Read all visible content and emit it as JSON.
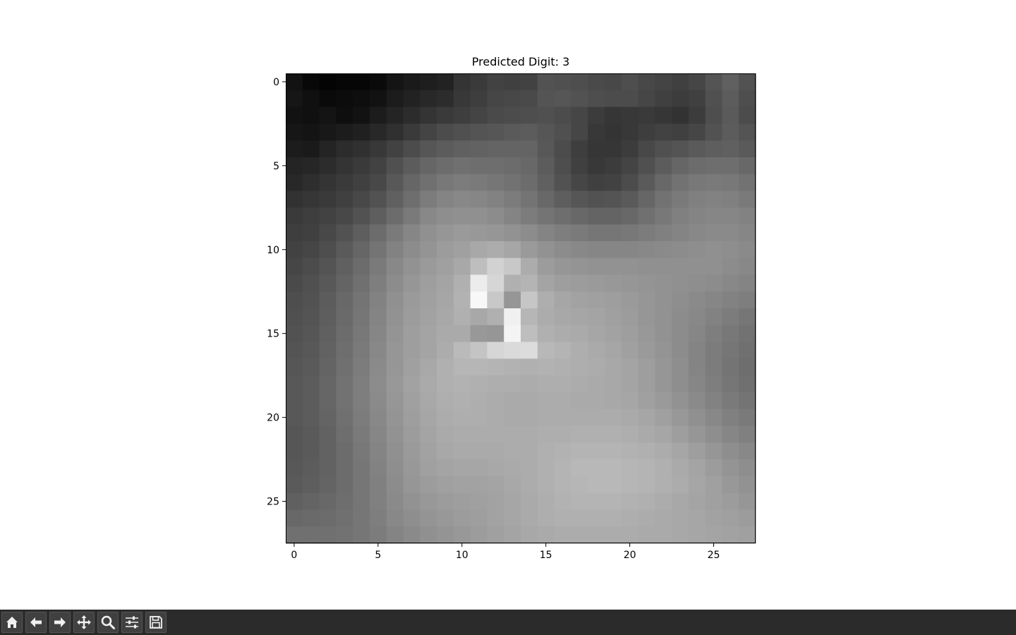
{
  "chart_data": {
    "type": "heatmap",
    "title": "Predicted Digit: 3",
    "colormap": "gray",
    "xlim": [
      -0.5,
      27.5
    ],
    "ylim": [
      27.5,
      -0.5
    ],
    "xticks": [
      0,
      5,
      10,
      15,
      20,
      25
    ],
    "yticks": [
      0,
      5,
      10,
      15,
      20,
      25
    ],
    "grid": false,
    "pixels": [
      [
        18,
        8,
        4,
        6,
        6,
        10,
        20,
        26,
        30,
        34,
        52,
        58,
        66,
        64,
        66,
        82,
        80,
        78,
        74,
        72,
        78,
        72,
        68,
        64,
        70,
        84,
        96,
        82
      ],
      [
        22,
        16,
        10,
        12,
        14,
        18,
        28,
        34,
        40,
        44,
        56,
        62,
        70,
        72,
        74,
        84,
        86,
        82,
        78,
        76,
        76,
        70,
        64,
        60,
        64,
        80,
        92,
        78
      ],
      [
        18,
        16,
        20,
        14,
        18,
        28,
        36,
        44,
        52,
        58,
        62,
        68,
        74,
        76,
        78,
        80,
        76,
        70,
        60,
        54,
        56,
        58,
        54,
        50,
        60,
        78,
        90,
        76
      ],
      [
        22,
        20,
        24,
        28,
        32,
        40,
        48,
        58,
        68,
        76,
        80,
        84,
        86,
        90,
        92,
        86,
        80,
        70,
        56,
        52,
        56,
        62,
        66,
        64,
        70,
        82,
        92,
        84
      ],
      [
        28,
        26,
        36,
        44,
        48,
        56,
        66,
        76,
        86,
        92,
        96,
        98,
        100,
        100,
        100,
        88,
        76,
        62,
        54,
        54,
        60,
        72,
        80,
        84,
        90,
        94,
        96,
        90
      ],
      [
        36,
        38,
        44,
        52,
        58,
        66,
        80,
        92,
        102,
        108,
        112,
        110,
        110,
        108,
        104,
        92,
        78,
        64,
        56,
        60,
        68,
        80,
        92,
        102,
        108,
        110,
        110,
        104
      ],
      [
        40,
        46,
        52,
        58,
        64,
        72,
        88,
        102,
        112,
        120,
        124,
        122,
        118,
        114,
        108,
        96,
        82,
        70,
        64,
        66,
        76,
        90,
        104,
        114,
        120,
        122,
        120,
        114
      ],
      [
        50,
        54,
        58,
        64,
        72,
        82,
        96,
        110,
        124,
        132,
        136,
        134,
        130,
        124,
        116,
        104,
        94,
        86,
        82,
        84,
        90,
        102,
        114,
        122,
        128,
        130,
        128,
        122
      ],
      [
        58,
        62,
        66,
        72,
        82,
        94,
        108,
        122,
        136,
        142,
        144,
        144,
        140,
        132,
        124,
        116,
        110,
        104,
        100,
        100,
        104,
        112,
        120,
        128,
        132,
        134,
        134,
        130
      ],
      [
        62,
        64,
        72,
        82,
        94,
        108,
        122,
        134,
        144,
        150,
        154,
        152,
        150,
        146,
        140,
        132,
        126,
        122,
        118,
        118,
        120,
        124,
        128,
        132,
        136,
        138,
        138,
        134
      ],
      [
        66,
        70,
        78,
        90,
        102,
        116,
        130,
        140,
        148,
        156,
        160,
        168,
        172,
        166,
        154,
        146,
        140,
        136,
        134,
        134,
        134,
        136,
        138,
        140,
        142,
        144,
        142,
        138
      ],
      [
        70,
        76,
        84,
        96,
        108,
        122,
        136,
        146,
        154,
        160,
        168,
        190,
        210,
        200,
        172,
        156,
        150,
        148,
        146,
        146,
        146,
        144,
        144,
        144,
        144,
        144,
        140,
        136
      ],
      [
        74,
        80,
        88,
        100,
        112,
        126,
        140,
        150,
        158,
        164,
        176,
        236,
        214,
        176,
        180,
        164,
        158,
        156,
        154,
        152,
        150,
        148,
        146,
        144,
        142,
        140,
        136,
        132
      ],
      [
        78,
        82,
        92,
        104,
        116,
        130,
        144,
        154,
        160,
        166,
        178,
        248,
        200,
        150,
        198,
        174,
        166,
        162,
        160,
        158,
        154,
        150,
        146,
        142,
        138,
        134,
        130,
        126
      ],
      [
        80,
        84,
        94,
        106,
        118,
        132,
        146,
        156,
        162,
        168,
        176,
        168,
        176,
        240,
        182,
        172,
        168,
        166,
        164,
        160,
        156,
        150,
        146,
        140,
        136,
        130,
        124,
        118
      ],
      [
        82,
        86,
        96,
        108,
        120,
        134,
        148,
        158,
        164,
        170,
        170,
        152,
        150,
        244,
        190,
        176,
        172,
        170,
        166,
        162,
        158,
        152,
        146,
        140,
        134,
        126,
        120,
        114
      ],
      [
        84,
        88,
        98,
        110,
        122,
        136,
        150,
        158,
        164,
        172,
        186,
        196,
        214,
        218,
        220,
        184,
        180,
        174,
        170,
        166,
        160,
        154,
        148,
        140,
        132,
        124,
        118,
        112
      ],
      [
        86,
        90,
        100,
        112,
        124,
        138,
        150,
        160,
        168,
        176,
        182,
        182,
        180,
        178,
        176,
        178,
        176,
        174,
        172,
        168,
        164,
        158,
        150,
        142,
        132,
        124,
        116,
        110
      ],
      [
        88,
        92,
        102,
        114,
        126,
        140,
        152,
        162,
        170,
        176,
        178,
        176,
        174,
        174,
        172,
        174,
        174,
        172,
        170,
        168,
        164,
        158,
        150,
        142,
        134,
        126,
        118,
        112
      ],
      [
        88,
        92,
        102,
        114,
        126,
        138,
        150,
        160,
        168,
        174,
        176,
        174,
        172,
        170,
        170,
        172,
        172,
        170,
        170,
        168,
        166,
        160,
        154,
        146,
        138,
        130,
        122,
        116
      ],
      [
        88,
        92,
        100,
        112,
        124,
        136,
        148,
        158,
        166,
        172,
        174,
        174,
        172,
        170,
        170,
        172,
        172,
        172,
        172,
        172,
        170,
        166,
        160,
        152,
        144,
        136,
        128,
        122
      ],
      [
        86,
        90,
        98,
        110,
        122,
        134,
        146,
        156,
        164,
        170,
        172,
        172,
        172,
        172,
        172,
        174,
        174,
        176,
        176,
        176,
        174,
        170,
        166,
        158,
        150,
        142,
        134,
        128
      ],
      [
        86,
        90,
        98,
        108,
        120,
        132,
        144,
        154,
        162,
        168,
        170,
        170,
        170,
        172,
        172,
        176,
        178,
        180,
        180,
        180,
        178,
        176,
        172,
        166,
        158,
        150,
        142,
        136
      ],
      [
        88,
        92,
        98,
        108,
        118,
        130,
        142,
        152,
        160,
        164,
        166,
        166,
        168,
        170,
        172,
        176,
        180,
        184,
        184,
        184,
        182,
        180,
        176,
        170,
        164,
        156,
        148,
        142
      ],
      [
        90,
        94,
        100,
        108,
        118,
        128,
        140,
        150,
        156,
        160,
        162,
        162,
        164,
        168,
        172,
        176,
        180,
        182,
        184,
        184,
        182,
        180,
        176,
        172,
        166,
        160,
        152,
        146
      ],
      [
        96,
        100,
        104,
        110,
        118,
        128,
        138,
        146,
        152,
        156,
        158,
        160,
        162,
        166,
        170,
        174,
        178,
        180,
        180,
        180,
        178,
        176,
        172,
        168,
        164,
        160,
        156,
        150
      ],
      [
        104,
        106,
        108,
        112,
        118,
        126,
        136,
        142,
        148,
        152,
        156,
        158,
        162,
        166,
        170,
        174,
        176,
        176,
        176,
        176,
        174,
        172,
        170,
        168,
        166,
        162,
        160,
        156
      ],
      [
        112,
        112,
        112,
        114,
        118,
        124,
        132,
        138,
        144,
        148,
        152,
        156,
        160,
        164,
        168,
        170,
        172,
        172,
        172,
        172,
        172,
        170,
        170,
        168,
        166,
        164,
        162,
        160
      ]
    ]
  },
  "toolbar": {
    "buttons": [
      {
        "icon": "home-icon"
      },
      {
        "icon": "back-icon"
      },
      {
        "icon": "forward-icon"
      },
      {
        "icon": "pan-icon"
      },
      {
        "icon": "zoom-icon"
      },
      {
        "icon": "configure-subplots-icon"
      },
      {
        "icon": "save-icon"
      }
    ],
    "background": "#2b2b2b",
    "icon_color": "#f0f0f0"
  }
}
